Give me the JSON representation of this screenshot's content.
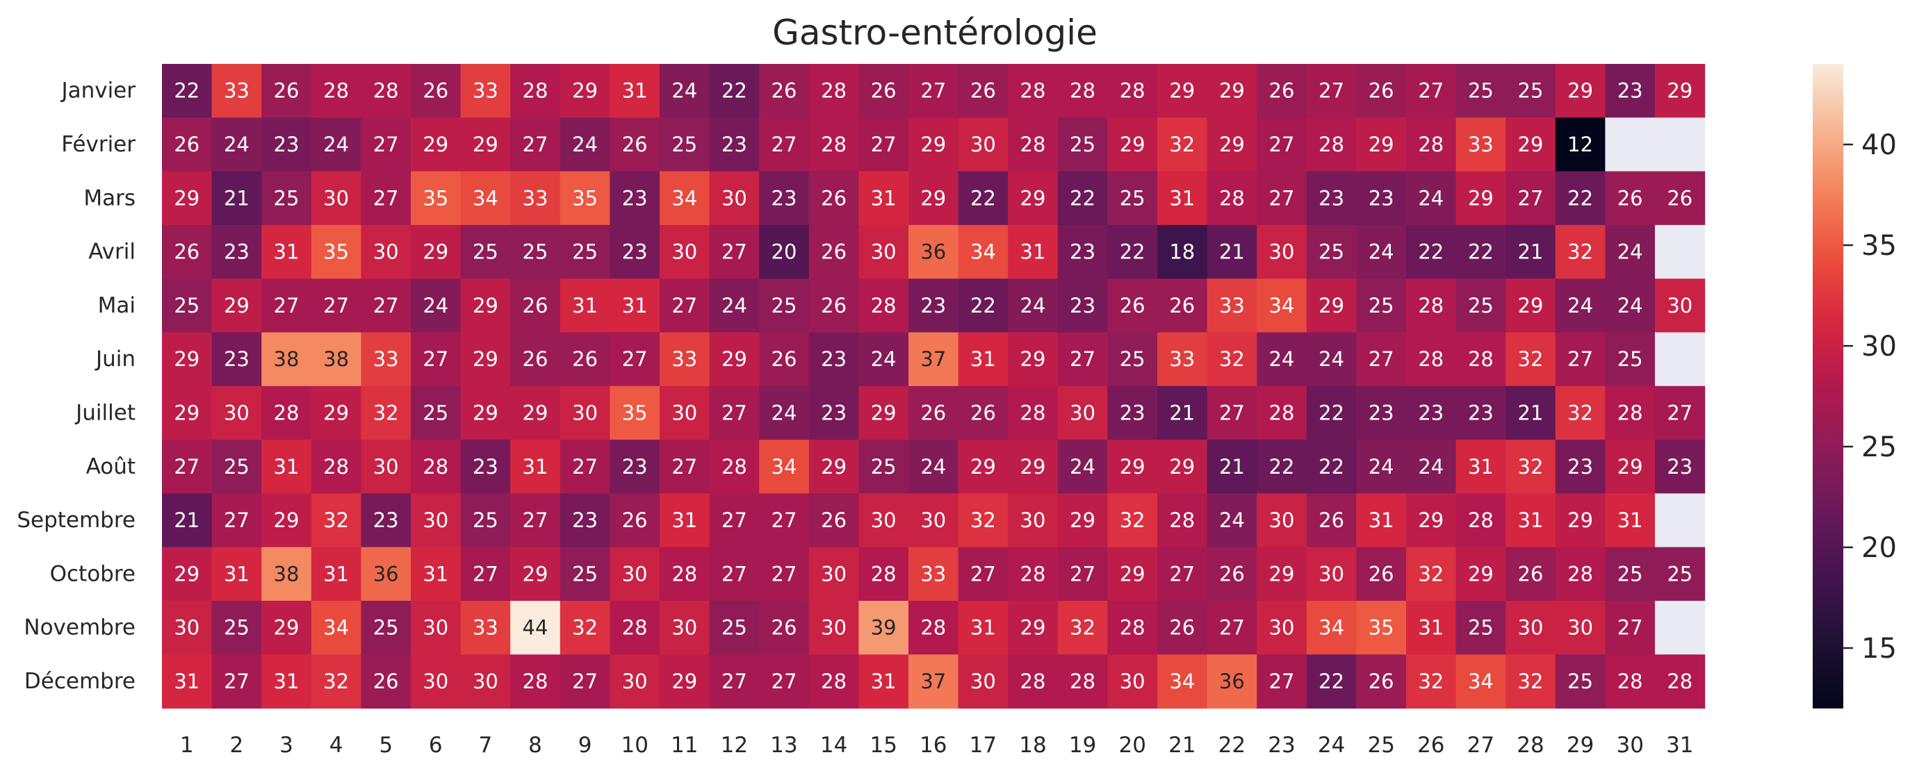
{
  "chart_data": {
    "type": "heatmap",
    "title": "Gastro-entérologie",
    "xlabel": "",
    "ylabel": "",
    "rows": [
      "Janvier",
      "Février",
      "Mars",
      "Avril",
      "Mai",
      "Juin",
      "Juillet",
      "Août",
      "Septembre",
      "Octobre",
      "Novembre",
      "Décembre"
    ],
    "columns": [
      "1",
      "2",
      "3",
      "4",
      "5",
      "6",
      "7",
      "8",
      "9",
      "10",
      "11",
      "12",
      "13",
      "14",
      "15",
      "16",
      "17",
      "18",
      "19",
      "20",
      "21",
      "22",
      "23",
      "24",
      "25",
      "26",
      "27",
      "28",
      "29",
      "30",
      "31"
    ],
    "values": [
      [
        22,
        33,
        26,
        28,
        28,
        26,
        33,
        28,
        29,
        31,
        24,
        22,
        26,
        28,
        26,
        27,
        26,
        28,
        28,
        28,
        29,
        29,
        26,
        27,
        26,
        27,
        25,
        25,
        29,
        23,
        29
      ],
      [
        26,
        24,
        23,
        24,
        27,
        29,
        29,
        27,
        24,
        26,
        25,
        23,
        27,
        28,
        27,
        29,
        30,
        28,
        25,
        29,
        32,
        29,
        27,
        28,
        29,
        28,
        33,
        29,
        12,
        null,
        null
      ],
      [
        29,
        21,
        25,
        30,
        27,
        35,
        34,
        33,
        35,
        23,
        34,
        30,
        23,
        26,
        31,
        29,
        22,
        29,
        22,
        25,
        31,
        28,
        27,
        23,
        23,
        24,
        29,
        27,
        22,
        26,
        26
      ],
      [
        26,
        23,
        31,
        35,
        30,
        29,
        25,
        25,
        25,
        23,
        30,
        27,
        20,
        26,
        30,
        36,
        34,
        31,
        23,
        22,
        18,
        21,
        30,
        25,
        24,
        22,
        22,
        21,
        32,
        24,
        null
      ],
      [
        25,
        29,
        27,
        27,
        27,
        24,
        29,
        26,
        31,
        31,
        27,
        24,
        25,
        26,
        28,
        23,
        22,
        24,
        23,
        26,
        26,
        33,
        34,
        29,
        25,
        28,
        25,
        29,
        24,
        24,
        30
      ],
      [
        29,
        23,
        38,
        38,
        33,
        27,
        29,
        26,
        26,
        27,
        33,
        29,
        26,
        23,
        24,
        37,
        31,
        29,
        27,
        25,
        33,
        32,
        24,
        24,
        27,
        28,
        28,
        32,
        27,
        25,
        null
      ],
      [
        29,
        30,
        28,
        29,
        32,
        25,
        29,
        29,
        30,
        35,
        30,
        27,
        24,
        23,
        29,
        26,
        26,
        28,
        30,
        23,
        21,
        27,
        28,
        22,
        23,
        23,
        23,
        21,
        32,
        28,
        27
      ],
      [
        27,
        25,
        31,
        28,
        30,
        28,
        23,
        31,
        27,
        23,
        27,
        28,
        34,
        29,
        25,
        24,
        29,
        29,
        24,
        29,
        29,
        21,
        22,
        22,
        24,
        24,
        31,
        32,
        23,
        29,
        23
      ],
      [
        21,
        27,
        29,
        32,
        23,
        30,
        25,
        27,
        23,
        26,
        31,
        27,
        27,
        26,
        30,
        30,
        32,
        30,
        29,
        32,
        28,
        24,
        30,
        26,
        31,
        29,
        28,
        31,
        29,
        31,
        null
      ],
      [
        29,
        31,
        38,
        31,
        36,
        31,
        27,
        29,
        25,
        30,
        28,
        27,
        27,
        30,
        28,
        33,
        27,
        28,
        27,
        29,
        27,
        26,
        29,
        30,
        26,
        32,
        29,
        26,
        28,
        25,
        25
      ],
      [
        30,
        25,
        29,
        34,
        25,
        30,
        33,
        44,
        32,
        28,
        30,
        25,
        26,
        30,
        39,
        28,
        31,
        29,
        32,
        28,
        26,
        27,
        30,
        34,
        35,
        31,
        25,
        30,
        30,
        27,
        null
      ],
      [
        31,
        27,
        31,
        32,
        26,
        30,
        30,
        28,
        27,
        30,
        29,
        27,
        27,
        28,
        31,
        37,
        30,
        28,
        28,
        30,
        34,
        36,
        27,
        22,
        26,
        32,
        34,
        32,
        25,
        28,
        28
      ]
    ],
    "colorbar": {
      "ticks": [
        15,
        20,
        25,
        30,
        35,
        40
      ],
      "min": 12,
      "max": 44,
      "colormap": "rocket"
    },
    "missing_color": "#eaeaf2"
  }
}
